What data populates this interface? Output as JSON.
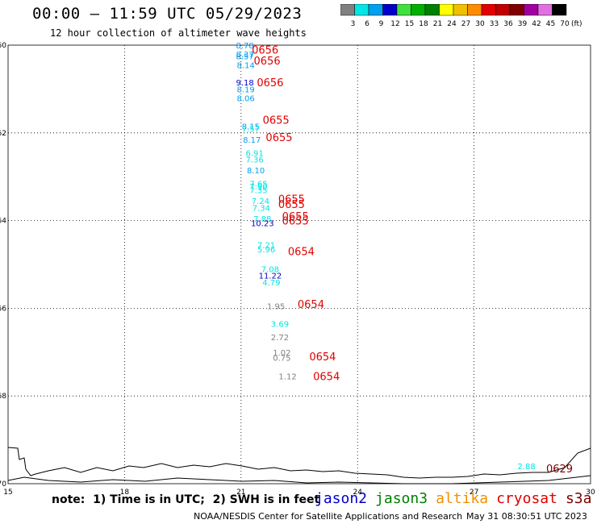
{
  "header": {
    "title": "00:00 — 11:59 UTC 05/29/2023",
    "subtitle": "12 hour collection of altimeter wave heights"
  },
  "colorbar": {
    "labels": [
      "3",
      "6",
      "9",
      "12",
      "15",
      "18",
      "21",
      "24",
      "27",
      "30",
      "33",
      "36",
      "39",
      "42",
      "45",
      "70"
    ],
    "unit": "(ft)",
    "colors": [
      "#808080",
      "#00e5e5",
      "#00a0f0",
      "#0000c8",
      "#40e040",
      "#00b000",
      "#008000",
      "#ffff00",
      "#f0c000",
      "#ff8c00",
      "#e00000",
      "#c00000",
      "#800000",
      "#a000a0",
      "#e070e0",
      "#000000"
    ]
  },
  "footer": {
    "note": "note:  1) Time is in UTC;  2) SWH is in feet",
    "legend": [
      {
        "label": "jason2",
        "color": "#0000d0"
      },
      {
        "label": "jason3",
        "color": "#008000"
      },
      {
        "label": "altika",
        "color": "#f09000"
      },
      {
        "label": "cryosat",
        "color": "#e00000"
      },
      {
        "label": "s3a",
        "color": "#800000"
      }
    ],
    "credit": "NOAA/NESDIS Center for Satellite Applications and Research",
    "timestamp": "May 31 08:30:51 UTC 2023"
  },
  "chart_data": {
    "type": "scatter",
    "xlim": [
      15,
      30
    ],
    "ylim": [
      -70,
      -60
    ],
    "x_ticks": [
      15,
      18,
      21,
      24,
      27,
      30
    ],
    "y_ticks": [
      -60,
      -62,
      -64,
      -66,
      -68,
      -70
    ],
    "grid": true,
    "points": [
      {
        "x": 21.1,
        "y": -60.0,
        "v": "8.78",
        "c": "#00a0f0"
      },
      {
        "x": 21.1,
        "y": -60.2,
        "v": "8.37",
        "c": "#00a0f0"
      },
      {
        "x": 21.1,
        "y": -60.25,
        "v": "8.57",
        "c": "#00a0f0"
      },
      {
        "x": 21.12,
        "y": -60.45,
        "v": "8.14",
        "c": "#00a0f0"
      },
      {
        "x": 21.1,
        "y": -60.85,
        "v": "9.18",
        "c": "#0000c8"
      },
      {
        "x": 21.12,
        "y": -61.0,
        "v": "8.19",
        "c": "#00a0f0"
      },
      {
        "x": 21.12,
        "y": -61.2,
        "v": "8.06",
        "c": "#00a0f0"
      },
      {
        "x": 21.25,
        "y": -61.85,
        "v": "8.15",
        "c": "#00a0f0"
      },
      {
        "x": 21.25,
        "y": -61.9,
        "v": "7.57",
        "c": "#00e5e5"
      },
      {
        "x": 21.28,
        "y": -62.15,
        "v": "8.17",
        "c": "#00a0f0"
      },
      {
        "x": 21.35,
        "y": -62.45,
        "v": "6.91",
        "c": "#00e5e5"
      },
      {
        "x": 21.35,
        "y": -62.6,
        "v": "7.36",
        "c": "#00e5e5"
      },
      {
        "x": 21.38,
        "y": -62.85,
        "v": "8.10",
        "c": "#00a0f0"
      },
      {
        "x": 21.45,
        "y": -63.15,
        "v": "7.65",
        "c": "#00e5e5"
      },
      {
        "x": 21.45,
        "y": -63.22,
        "v": "7.90",
        "c": "#00e5e5"
      },
      {
        "x": 21.45,
        "y": -63.3,
        "v": "7.35",
        "c": "#00e5e5"
      },
      {
        "x": 21.5,
        "y": -63.55,
        "v": "7.24",
        "c": "#00e5e5"
      },
      {
        "x": 21.52,
        "y": -63.7,
        "v": "7.34",
        "c": "#00e5e5"
      },
      {
        "x": 21.55,
        "y": -63.95,
        "v": "7.88",
        "c": "#00e5e5"
      },
      {
        "x": 21.55,
        "y": -64.05,
        "v": "10.23",
        "c": "#0000c8"
      },
      {
        "x": 21.65,
        "y": -64.55,
        "v": "7.21",
        "c": "#00e5e5"
      },
      {
        "x": 21.65,
        "y": -64.65,
        "v": "5.96",
        "c": "#00e5e5"
      },
      {
        "x": 21.75,
        "y": -65.1,
        "v": "7.08",
        "c": "#00e5e5"
      },
      {
        "x": 21.75,
        "y": -65.25,
        "v": "11.22",
        "c": "#0000c8"
      },
      {
        "x": 21.78,
        "y": -65.4,
        "v": "4.79",
        "c": "#00e5e5"
      },
      {
        "x": 21.9,
        "y": -65.95,
        "v": "1.95",
        "c": "#808080"
      },
      {
        "x": 22.0,
        "y": -66.35,
        "v": "3.69",
        "c": "#00e5e5"
      },
      {
        "x": 22.0,
        "y": -66.65,
        "v": "2.72",
        "c": "#808080"
      },
      {
        "x": 22.05,
        "y": -67.0,
        "v": "1.02",
        "c": "#808080"
      },
      {
        "x": 22.05,
        "y": -67.12,
        "v": "0.75",
        "c": "#808080"
      },
      {
        "x": 22.2,
        "y": -67.55,
        "v": "1.12",
        "c": "#808080"
      },
      {
        "x": 28.35,
        "y": -69.6,
        "v": "2.88",
        "c": "#00e5e5"
      }
    ],
    "time_labels": [
      {
        "x": 21.62,
        "y": -60.1,
        "t": "0656",
        "c": "#e00000"
      },
      {
        "x": 21.67,
        "y": -60.35,
        "t": "0656",
        "c": "#e00000"
      },
      {
        "x": 21.75,
        "y": -60.85,
        "t": "0656",
        "c": "#e00000"
      },
      {
        "x": 21.9,
        "y": -61.7,
        "t": "0655",
        "c": "#e00000"
      },
      {
        "x": 21.98,
        "y": -62.1,
        "t": "0655",
        "c": "#e00000"
      },
      {
        "x": 22.3,
        "y": -63.5,
        "t": "0655",
        "c": "#e00000"
      },
      {
        "x": 22.3,
        "y": -63.62,
        "t": "0655",
        "c": "#e00000"
      },
      {
        "x": 22.4,
        "y": -63.9,
        "t": "0655",
        "c": "#e00000"
      },
      {
        "x": 22.4,
        "y": -64.0,
        "t": "0655",
        "c": "#e00000"
      },
      {
        "x": 22.55,
        "y": -64.7,
        "t": "0654",
        "c": "#e00000"
      },
      {
        "x": 22.8,
        "y": -65.9,
        "t": "0654",
        "c": "#e00000"
      },
      {
        "x": 23.1,
        "y": -67.1,
        "t": "0654",
        "c": "#e00000"
      },
      {
        "x": 23.2,
        "y": -67.55,
        "t": "0654",
        "c": "#e00000"
      },
      {
        "x": 29.2,
        "y": -69.65,
        "t": "0629",
        "c": "#800000"
      }
    ]
  }
}
